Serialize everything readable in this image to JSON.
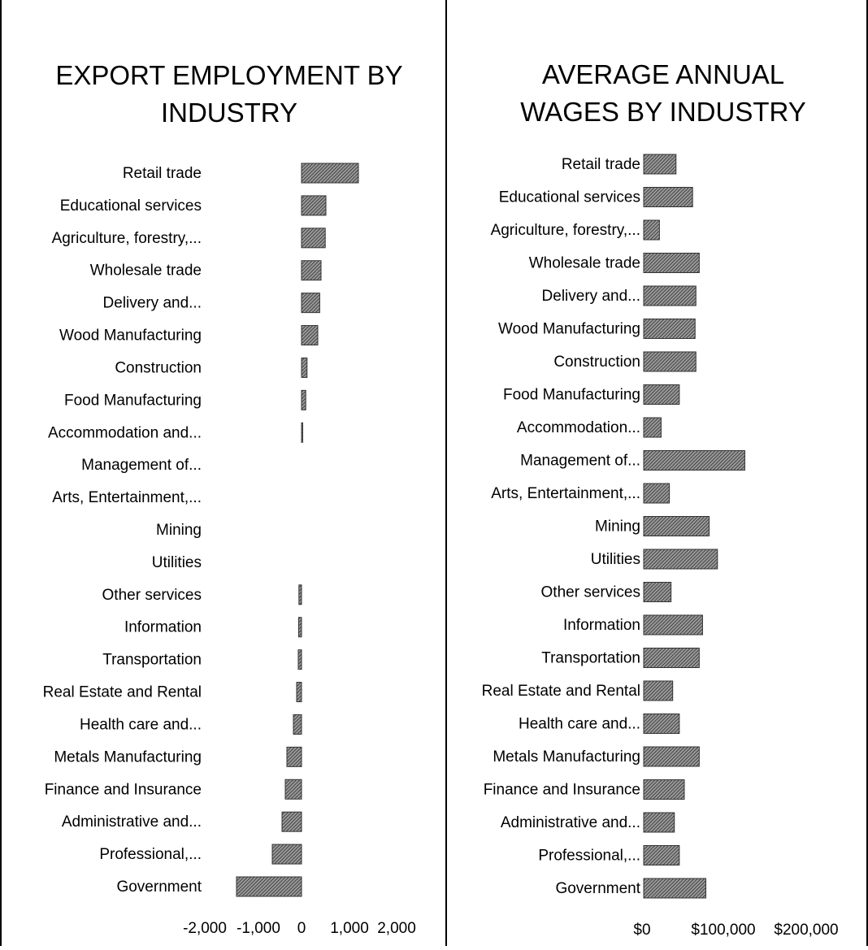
{
  "charts": {
    "export_title": [
      "EXPORT EMPLOYMENT BY",
      "INDUSTRY"
    ],
    "wages_title": [
      "AVERAGE ANNUAL",
      "WAGES BY INDUSTRY"
    ]
  },
  "chart_data": [
    {
      "type": "bar",
      "orientation": "horizontal",
      "title": "EXPORT EMPLOYMENT BY INDUSTRY",
      "categories": [
        "Retail trade",
        "Educational services",
        "Agriculture, forestry,...",
        "Wholesale trade",
        "Delivery and...",
        "Wood Manufacturing",
        "Construction",
        "Food Manufacturing",
        "Accommodation and...",
        "Management of...",
        "Arts, Entertainment,...",
        "Mining",
        "Utilities",
        "Other services",
        "Information",
        "Transportation",
        "Real Estate and Rental",
        "Health care and...",
        "Metals Manufacturing",
        "Finance and Insurance",
        "Administrative and...",
        "Professional,...",
        "Government"
      ],
      "values": [
        1750,
        750,
        730,
        600,
        560,
        500,
        170,
        130,
        10,
        0,
        0,
        0,
        0,
        -80,
        -90,
        -100,
        -150,
        -250,
        -450,
        -500,
        -600,
        -900,
        -2000
      ],
      "xlim": [
        -2000,
        2000
      ],
      "ticks": [
        "-2,000",
        "-1,000",
        "0",
        "1,000",
        "2,000"
      ],
      "grid": false,
      "bar_color": "#555555"
    },
    {
      "type": "bar",
      "orientation": "horizontal",
      "title": "AVERAGE ANNUAL WAGES BY INDUSTRY",
      "categories": [
        "Retail trade",
        "Educational services",
        "Agriculture, forestry,...",
        "Wholesale trade",
        "Delivery and...",
        "Wood Manufacturing",
        "Construction",
        "Food Manufacturing",
        "Accommodation...",
        "Management of...",
        "Arts, Entertainment,...",
        "Mining",
        "Utilities",
        "Other services",
        "Information",
        "Transportation",
        "Real Estate and Rental",
        "Health care and...",
        "Metals Manufacturing",
        "Finance and Insurance",
        "Administrative and...",
        "Professional,...",
        "Government"
      ],
      "values": [
        39000,
        59000,
        19000,
        67000,
        63000,
        62000,
        63000,
        43000,
        21000,
        122000,
        31000,
        79000,
        89000,
        33000,
        71000,
        67000,
        35000,
        43000,
        67000,
        49000,
        37000,
        43000,
        75000
      ],
      "xlim": [
        0,
        250000
      ],
      "ticks": [
        "$0",
        "$100,000",
        "$200,000"
      ],
      "grid": false,
      "bar_color": "#555555"
    }
  ]
}
